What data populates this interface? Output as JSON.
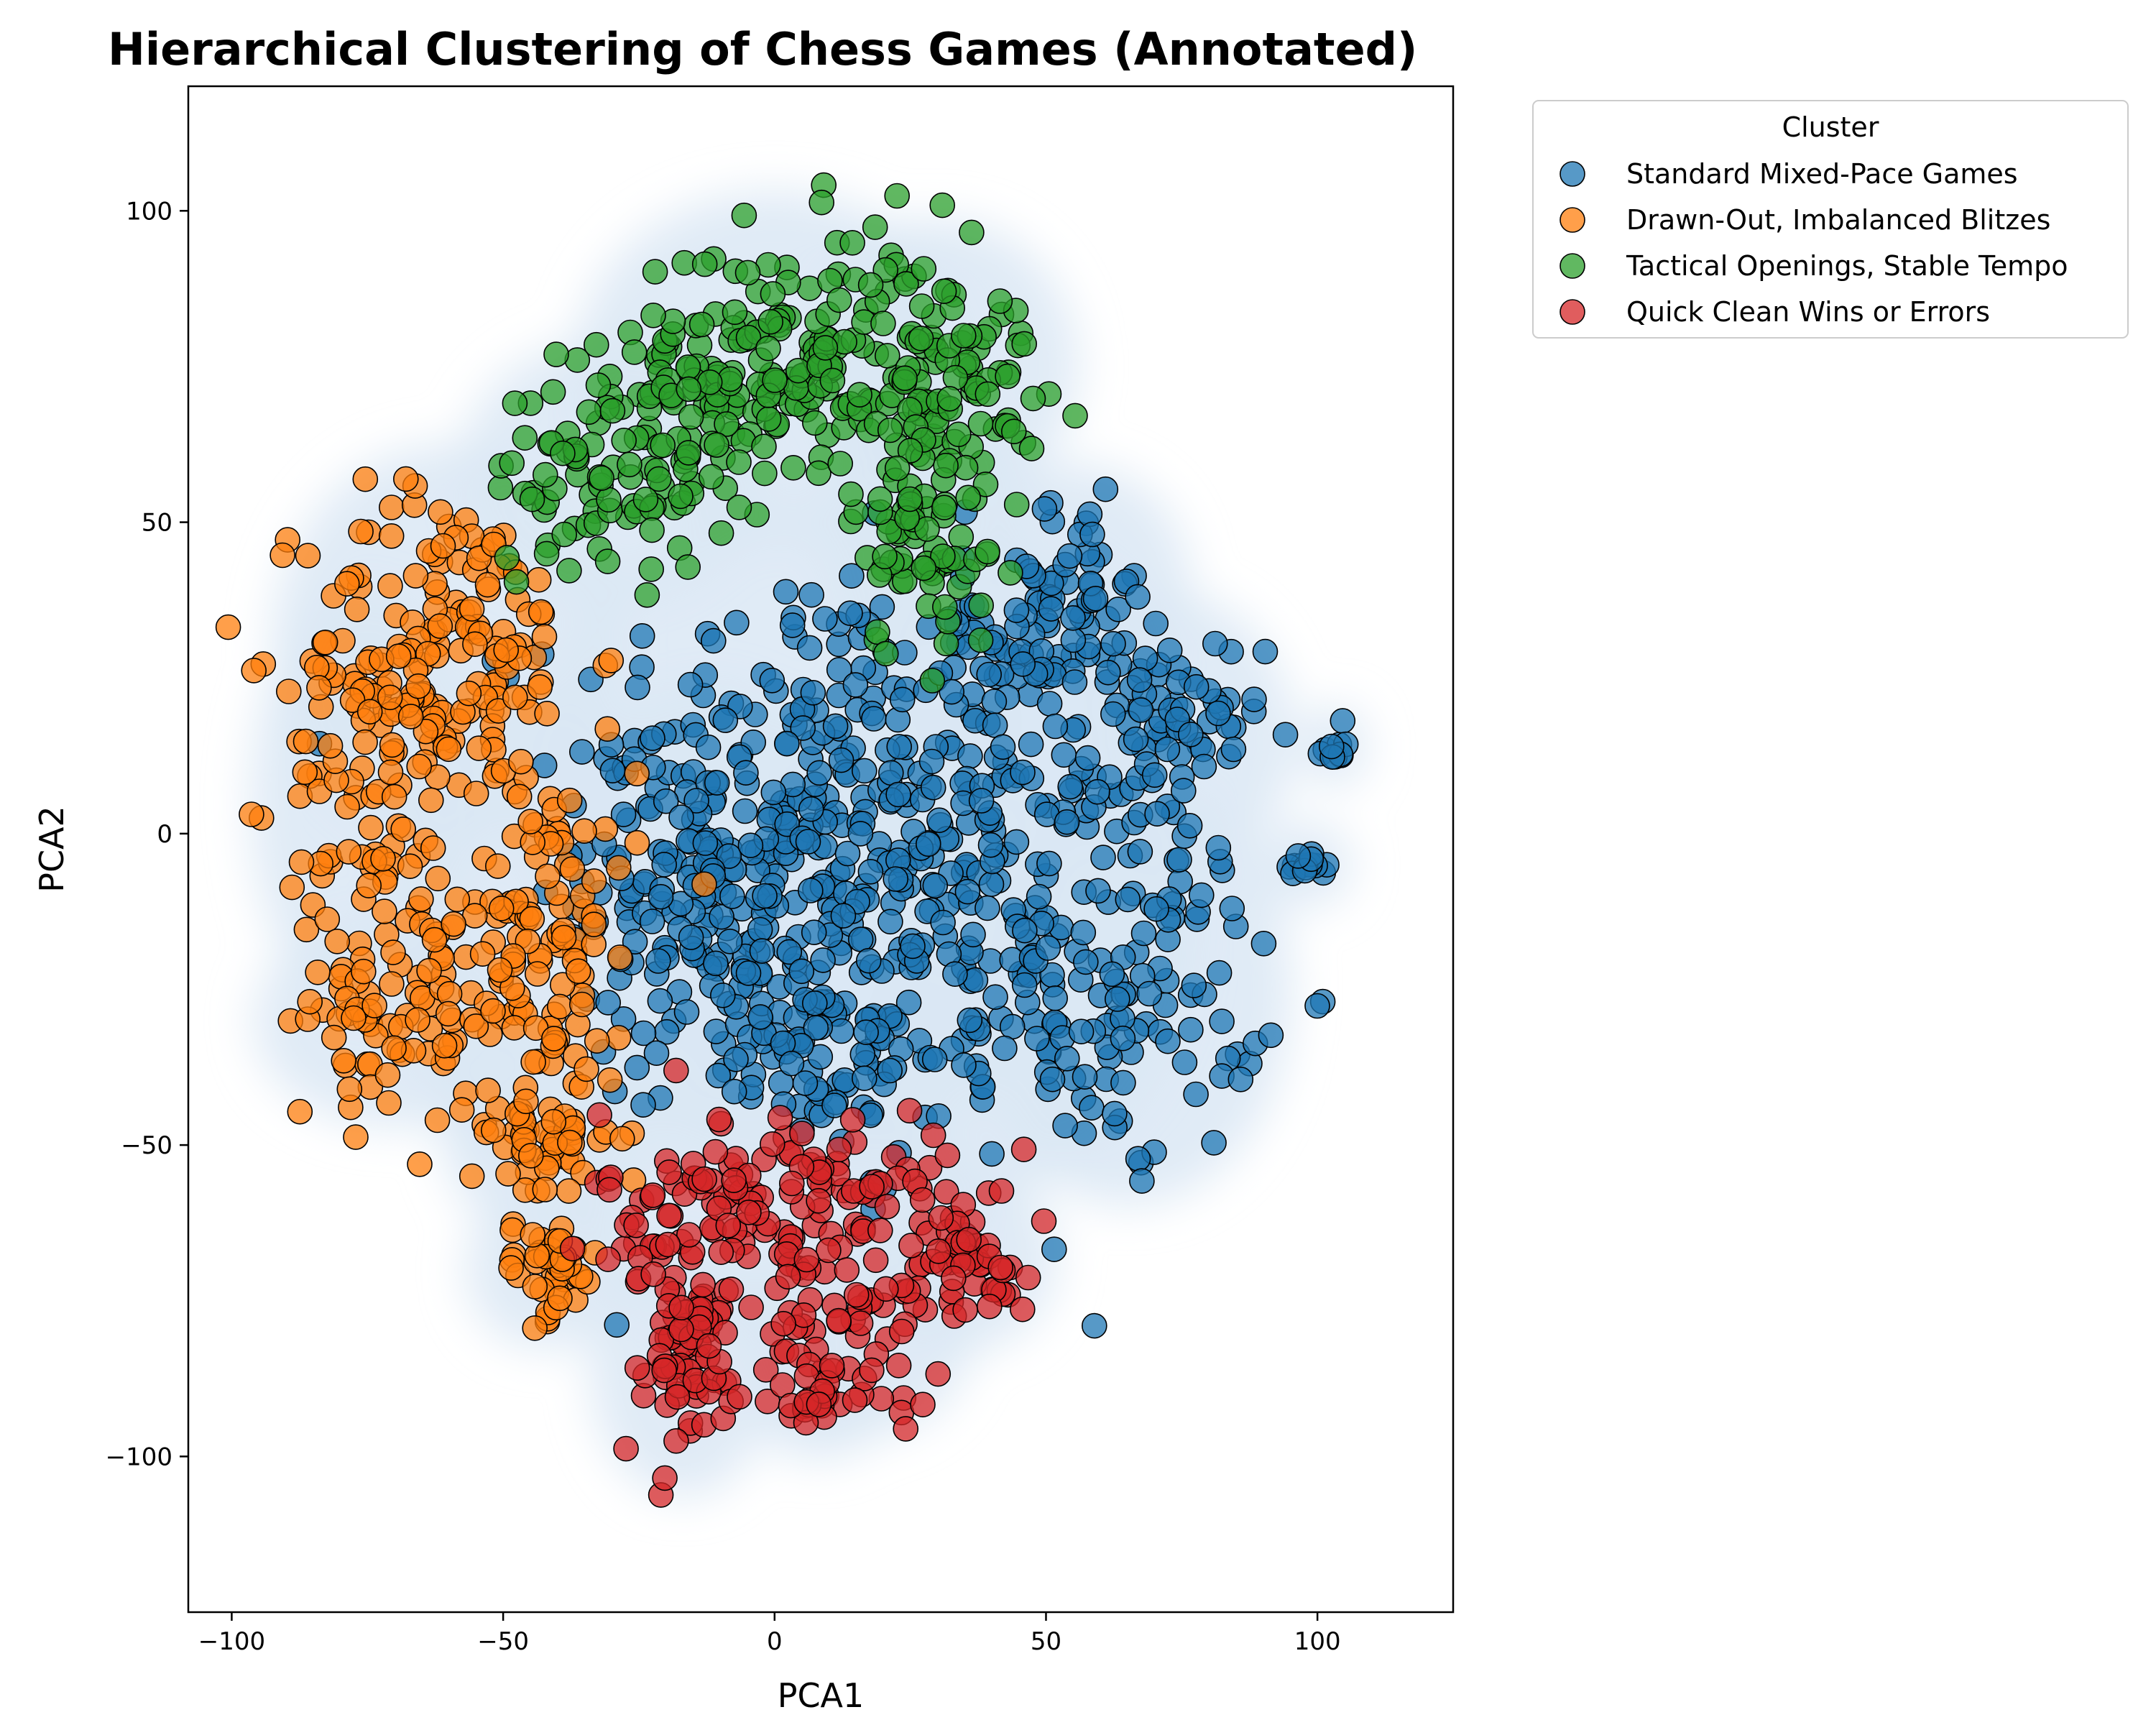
{
  "chart_data": {
    "type": "scatter",
    "title": "Hierarchical Clustering of Chess Games (Annotated)",
    "xlabel": "PCA1",
    "ylabel": "PCA2",
    "xlim": [
      -108,
      125
    ],
    "ylim": [
      -125,
      120
    ],
    "xticks": [
      -100,
      -50,
      0,
      50,
      100
    ],
    "xtick_labels": [
      "−100",
      "−50",
      "0",
      "50",
      "100"
    ],
    "yticks": [
      -100,
      -50,
      0,
      50,
      100
    ],
    "ytick_labels": [
      "−100",
      "−50",
      "0",
      "50",
      "100"
    ],
    "grid": false,
    "legend": {
      "title": "Cluster",
      "placement": "outside-top-right"
    },
    "density_background_color": "#dbe8f5",
    "series": [
      {
        "name": "Standard Mixed-Pace Games",
        "color": "#1f77b4",
        "regions": [
          {
            "cx": 5,
            "cy": 5,
            "sx": 22,
            "sy": 20,
            "n": 260
          },
          {
            "cx": -12,
            "cy": -10,
            "sx": 12,
            "sy": 14,
            "n": 110
          },
          {
            "cx": 35,
            "cy": -15,
            "sx": 18,
            "sy": 18,
            "n": 170
          },
          {
            "cx": 65,
            "cy": -25,
            "sx": 12,
            "sy": 14,
            "n": 110
          },
          {
            "cx": 72,
            "cy": 15,
            "sx": 9,
            "sy": 9,
            "n": 70
          },
          {
            "cx": 55,
            "cy": 40,
            "sx": 8,
            "sy": 7,
            "n": 50
          },
          {
            "cx": 45,
            "cy": 25,
            "sx": 10,
            "sy": 8,
            "n": 50
          },
          {
            "cx": 5,
            "cy": -35,
            "sx": 14,
            "sy": 8,
            "n": 70
          },
          {
            "cx": 103,
            "cy": 14,
            "sx": 1,
            "sy": 1.2,
            "n": 10
          },
          {
            "cx": 98,
            "cy": -5,
            "sx": 2,
            "sy": 1.3,
            "n": 12
          }
        ]
      },
      {
        "name": "Drawn-Out, Imbalanced Blitzes",
        "color": "#ff7f0e",
        "regions": [
          {
            "cx": -60,
            "cy": 30,
            "sx": 13,
            "sy": 13,
            "n": 150
          },
          {
            "cx": -75,
            "cy": 5,
            "sx": 8,
            "sy": 14,
            "n": 80
          },
          {
            "cx": -45,
            "cy": -15,
            "sx": 10,
            "sy": 16,
            "n": 130
          },
          {
            "cx": -70,
            "cy": -30,
            "sx": 10,
            "sy": 6,
            "n": 60
          },
          {
            "cx": -42,
            "cy": -48,
            "sx": 7,
            "sy": 6,
            "n": 50
          },
          {
            "cx": -42,
            "cy": -70,
            "sx": 5,
            "sy": 4,
            "n": 40
          }
        ]
      },
      {
        "name": "Tactical Openings, Stable Tempo",
        "color": "#2ca02c",
        "regions": [
          {
            "cx": 0,
            "cy": 75,
            "sx": 15,
            "sy": 11,
            "n": 180
          },
          {
            "cx": -30,
            "cy": 58,
            "sx": 11,
            "sy": 8,
            "n": 90
          },
          {
            "cx": 30,
            "cy": 75,
            "sx": 10,
            "sy": 9,
            "n": 100
          },
          {
            "cx": 28,
            "cy": 48,
            "sx": 7,
            "sy": 10,
            "n": 70
          }
        ]
      },
      {
        "name": "Quick Clean Wins or Errors",
        "color": "#d62728",
        "regions": [
          {
            "cx": 0,
            "cy": -60,
            "sx": 16,
            "sy": 8,
            "n": 150
          },
          {
            "cx": 35,
            "cy": -68,
            "sx": 6,
            "sy": 5,
            "n": 50
          },
          {
            "cx": -17,
            "cy": -85,
            "sx": 6,
            "sy": 8,
            "n": 70
          },
          {
            "cx": 15,
            "cy": -80,
            "sx": 8,
            "sy": 6,
            "n": 50
          },
          {
            "cx": 8,
            "cy": -90,
            "sx": 4,
            "sy": 3,
            "n": 20
          }
        ]
      }
    ]
  }
}
